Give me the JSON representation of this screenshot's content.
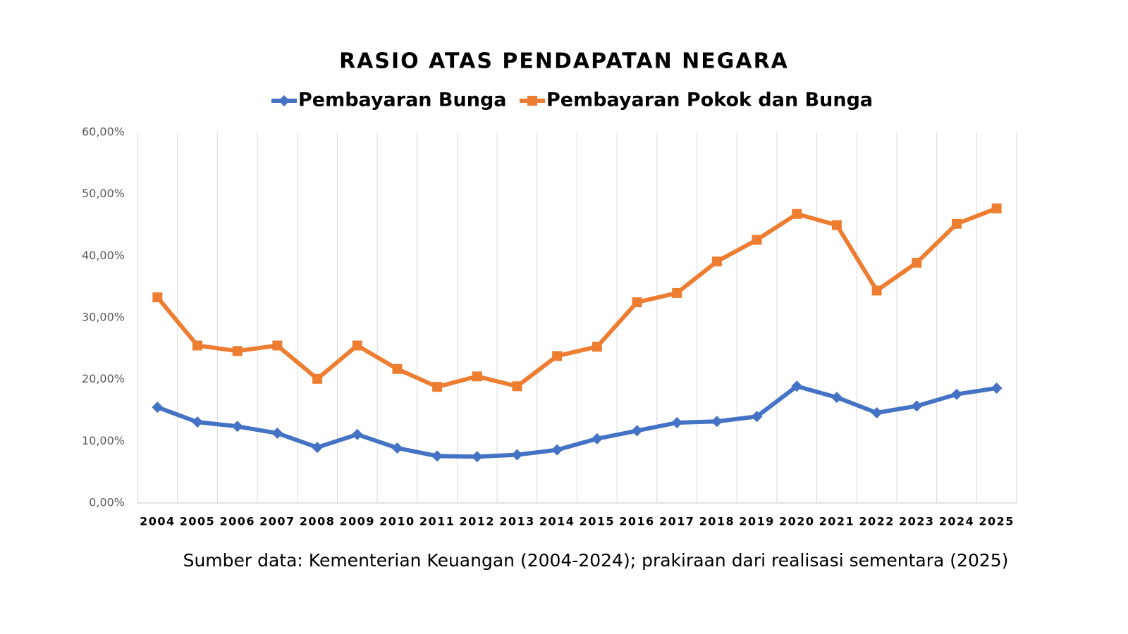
{
  "chart_data": {
    "type": "line",
    "title": "RASIO ATAS PENDAPATAN NEGARA",
    "source": "Sumber data: Kementerian Keuangan (2004-2024); prakiraan dari realisasi sementara (2025)",
    "categories": [
      "2004",
      "2005",
      "2006",
      "2007",
      "2008",
      "2009",
      "2010",
      "2011",
      "2012",
      "2013",
      "2014",
      "2015",
      "2016",
      "2017",
      "2018",
      "2019",
      "2020",
      "2021",
      "2022",
      "2023",
      "2024",
      "2025"
    ],
    "series": [
      {
        "name": "Pembayaran Bunga",
        "color": "#4472c4",
        "marker": "diamond",
        "values": [
          15.5,
          13.1,
          12.4,
          11.3,
          9.0,
          11.1,
          8.9,
          7.6,
          7.5,
          7.8,
          8.6,
          10.4,
          11.7,
          13.0,
          13.2,
          14.0,
          18.9,
          17.1,
          14.6,
          15.7,
          17.6,
          18.6
        ]
      },
      {
        "name": "Pembayaran Pokok dan Bunga",
        "color": "#ed7d31",
        "marker": "square",
        "values": [
          33.3,
          25.5,
          24.6,
          25.5,
          20.1,
          25.5,
          21.7,
          18.8,
          20.5,
          18.9,
          23.8,
          25.3,
          32.5,
          34.0,
          39.1,
          42.6,
          46.8,
          45.0,
          34.4,
          38.9,
          45.2,
          47.7
        ]
      }
    ],
    "ylim": [
      0,
      60
    ],
    "yticks": [
      {
        "value": 0,
        "label": "0,00%"
      },
      {
        "value": 10,
        "label": "10,00%"
      },
      {
        "value": 20,
        "label": "20,00%"
      },
      {
        "value": 30,
        "label": "30,00%"
      },
      {
        "value": 40,
        "label": "40,00%"
      },
      {
        "value": 50,
        "label": "50,00%"
      },
      {
        "value": 60,
        "label": "60,00%"
      }
    ]
  }
}
